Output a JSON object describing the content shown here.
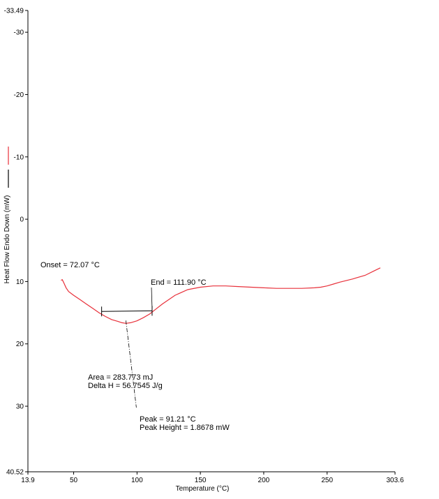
{
  "chart_data": {
    "type": "line",
    "xlabel": "Temperature (°C)",
    "ylabel": "Heat Flow Endo Down (mW)",
    "xlim": [
      13.9,
      303.6
    ],
    "ylim": [
      -33.49,
      40.52
    ],
    "y_inverted": true,
    "grid": false,
    "x_tick_labels": [
      "13.9",
      "50",
      "100",
      "150",
      "200",
      "250",
      "303.6"
    ],
    "x_tick_values": [
      13.9,
      50,
      100,
      150,
      200,
      250,
      303.6
    ],
    "y_tick_labels": [
      "-33.49",
      "-30",
      "-20",
      "-10",
      "0",
      "10",
      "20",
      "30",
      "40.52"
    ],
    "y_tick_values": [
      -33.49,
      -30,
      -20,
      -10,
      0,
      10,
      20,
      30,
      40.52
    ],
    "series": [
      {
        "color": "#e8303a",
        "x": [
          40,
          41,
          42,
          44,
          46,
          50,
          55,
          60,
          65,
          70,
          75,
          80,
          85,
          88,
          91.21,
          95,
          100,
          105,
          110,
          115,
          120,
          130,
          140,
          150,
          160,
          170,
          180,
          190,
          200,
          210,
          220,
          230,
          240,
          245,
          250,
          255,
          260,
          270,
          280,
          287,
          292
        ],
        "y": [
          9.8,
          9.7,
          10.1,
          11.0,
          11.6,
          12.2,
          12.9,
          13.6,
          14.3,
          15.0,
          15.6,
          16.1,
          16.4,
          16.6,
          16.7,
          16.6,
          16.3,
          15.8,
          15.2,
          14.4,
          13.6,
          12.2,
          11.3,
          10.9,
          10.7,
          10.7,
          10.8,
          10.9,
          11.0,
          11.1,
          11.1,
          11.1,
          11.0,
          10.9,
          10.7,
          10.4,
          10.1,
          9.6,
          9.0,
          8.3,
          7.8
        ]
      }
    ],
    "baseline": {
      "x": [
        72.07,
        111.9
      ],
      "y": [
        14.8,
        14.7
      ],
      "color": "#000000"
    },
    "legend_swatches": [
      {
        "color": "#e8303a"
      },
      {
        "color": "#000000"
      }
    ],
    "annotations": {
      "onset": "Onset = 72.07 °C",
      "end": "End = 111.90 °C",
      "area": "Area = 283.773 mJ",
      "delta_h": "Delta H = 56.7545 J/g",
      "peak": "Peak = 91.21 °C",
      "peak_height": "Peak Height = 1.8678 mW"
    }
  }
}
